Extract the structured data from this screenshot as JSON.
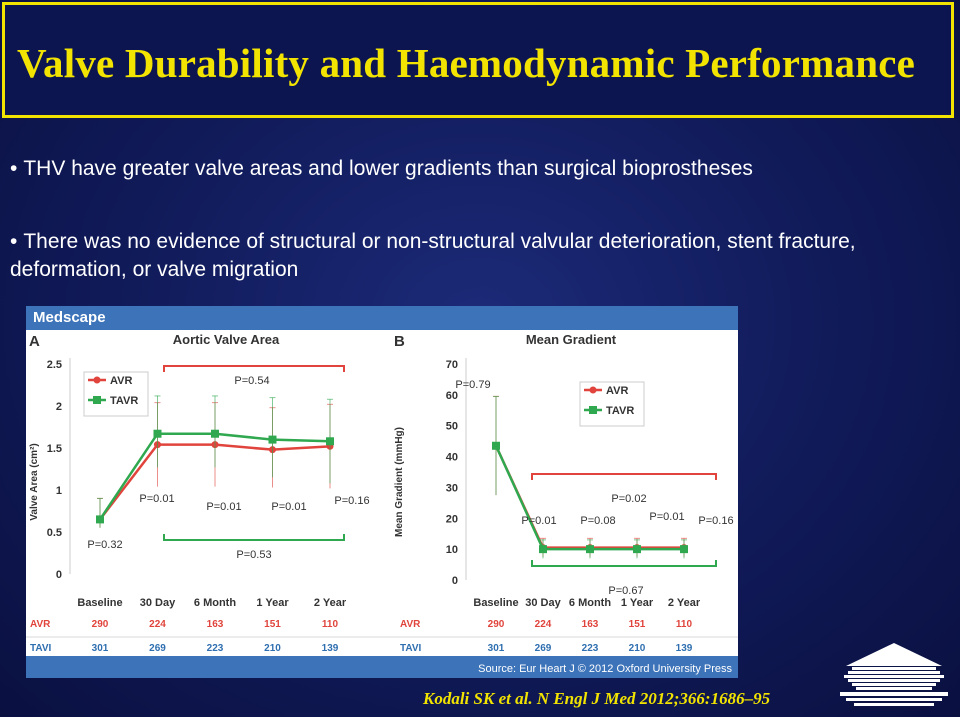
{
  "slide": {
    "title": "Valve Durability and  Haemodynamic Performance",
    "bullets": [
      "THV have greater valve areas and lower gradients than surgical bioprostheses",
      "There was no evidence of structural or non-structural valvular deterioration, stent fracture, deformation, or valve migration"
    ],
    "citation": "Kodali SK et al. N Engl J Med 2012;366:1686–95",
    "logo_icon": "university-building-logo"
  },
  "figure": {
    "brand": "Medscape",
    "source": "Source: Eur Heart J © 2012 Oxford University Press",
    "number_rows": [
      {
        "label": "AVR",
        "values": [
          "290",
          "224",
          "163",
          "151",
          "110"
        ]
      },
      {
        "label": "TAVI",
        "values": [
          "301",
          "269",
          "223",
          "210",
          "139"
        ]
      }
    ]
  },
  "chart_data": [
    {
      "type": "line",
      "panel": "A",
      "title": "Aortic Valve Area",
      "ylabel": "Valve Area (cm²)",
      "xlabel": "",
      "categories": [
        "Baseline",
        "30 Day",
        "6 Month",
        "1 Year",
        "2 Year"
      ],
      "yticks": [
        "0",
        "0.5",
        "1",
        "1.5",
        "2",
        "2.5"
      ],
      "ylim": [
        0,
        2.5
      ],
      "legend_position": "top-left",
      "series": [
        {
          "name": "AVR",
          "color": "#e0443c",
          "values": [
            0.65,
            1.54,
            1.54,
            1.48,
            1.52
          ],
          "err_up": [
            0.25,
            0.5,
            0.5,
            0.5,
            0.5
          ],
          "err_down": [
            0.1,
            0.5,
            0.5,
            0.45,
            0.5
          ]
        },
        {
          "name": "TAVR",
          "color": "#2fa84f",
          "values": [
            0.65,
            1.67,
            1.67,
            1.6,
            1.58
          ],
          "err_up": [
            0.25,
            0.45,
            0.45,
            0.5,
            0.5
          ],
          "err_down": [
            0.1,
            0.4,
            0.4,
            0.45,
            0.5
          ]
        }
      ],
      "annotations": [
        {
          "text": "P=0.54",
          "near": "top-bracket"
        },
        {
          "text": "P=0.01",
          "category": "30 Day"
        },
        {
          "text": "P=0.01",
          "category": "6 Month"
        },
        {
          "text": "P=0.01",
          "category": "1 Year"
        },
        {
          "text": "P=0.16",
          "category": "2 Year"
        },
        {
          "text": "P=0.32",
          "category": "Baseline"
        },
        {
          "text": "P=0.53",
          "near": "bottom-bracket"
        }
      ]
    },
    {
      "type": "line",
      "panel": "B",
      "title": "Mean Gradient",
      "ylabel": "Mean Gradient (mmHg)",
      "xlabel": "",
      "categories": [
        "Baseline",
        "30 Day",
        "6 Month",
        "1 Year",
        "2 Year"
      ],
      "yticks": [
        "0",
        "10",
        "20",
        "30",
        "40",
        "50",
        "60",
        "70"
      ],
      "ylim": [
        0,
        70
      ],
      "legend_position": "top-right",
      "series": [
        {
          "name": "AVR",
          "color": "#e0443c",
          "values": [
            43.5,
            10.5,
            10.5,
            10.5,
            10.5
          ],
          "err_up": [
            16,
            3,
            3,
            3,
            3
          ],
          "err_down": [
            16,
            3,
            3,
            3,
            3
          ]
        },
        {
          "name": "TAVR",
          "color": "#2fa84f",
          "values": [
            43.5,
            10,
            10,
            10,
            10
          ],
          "err_up": [
            16,
            3,
            3,
            3,
            3
          ],
          "err_down": [
            16,
            3,
            3,
            3,
            3
          ]
        }
      ],
      "annotations": [
        {
          "text": "P=0.79",
          "category": "Baseline"
        },
        {
          "text": "P=0.01",
          "category": "30 Day"
        },
        {
          "text": "P=0.08",
          "category": "6 Month"
        },
        {
          "text": "P=0.01",
          "category": "1 Year"
        },
        {
          "text": "P=0.16",
          "category": "2 Year"
        },
        {
          "text": "P=0.02",
          "near": "top-bracket"
        },
        {
          "text": "P=0.67",
          "near": "bottom-bracket"
        }
      ]
    }
  ]
}
